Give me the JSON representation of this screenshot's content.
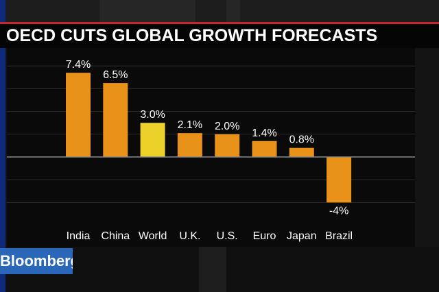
{
  "title": "OECD CUTS GLOBAL GROWTH FORECASTS",
  "logo": "Bloomberg",
  "colors": {
    "bar": "#e8921a",
    "highlight": "#ecd12a",
    "accent_line": "#c7252c",
    "logo_bg": "#2a67b8"
  },
  "chart_data": {
    "type": "bar",
    "categories": [
      "India",
      "China",
      "World",
      "U.K.",
      "U.S.",
      "Euro",
      "Japan",
      "Brazil"
    ],
    "values": [
      7.4,
      6.5,
      3.0,
      2.1,
      2.0,
      1.4,
      0.8,
      -4
    ],
    "data_labels": [
      "7.4%",
      "6.5%",
      "3.0%",
      "2.1%",
      "2.0%",
      "1.4%",
      "0.8%",
      "-4%"
    ],
    "highlight": "World",
    "ylim": [
      -4.5,
      8.3
    ],
    "grid": true,
    "legend": "none"
  }
}
